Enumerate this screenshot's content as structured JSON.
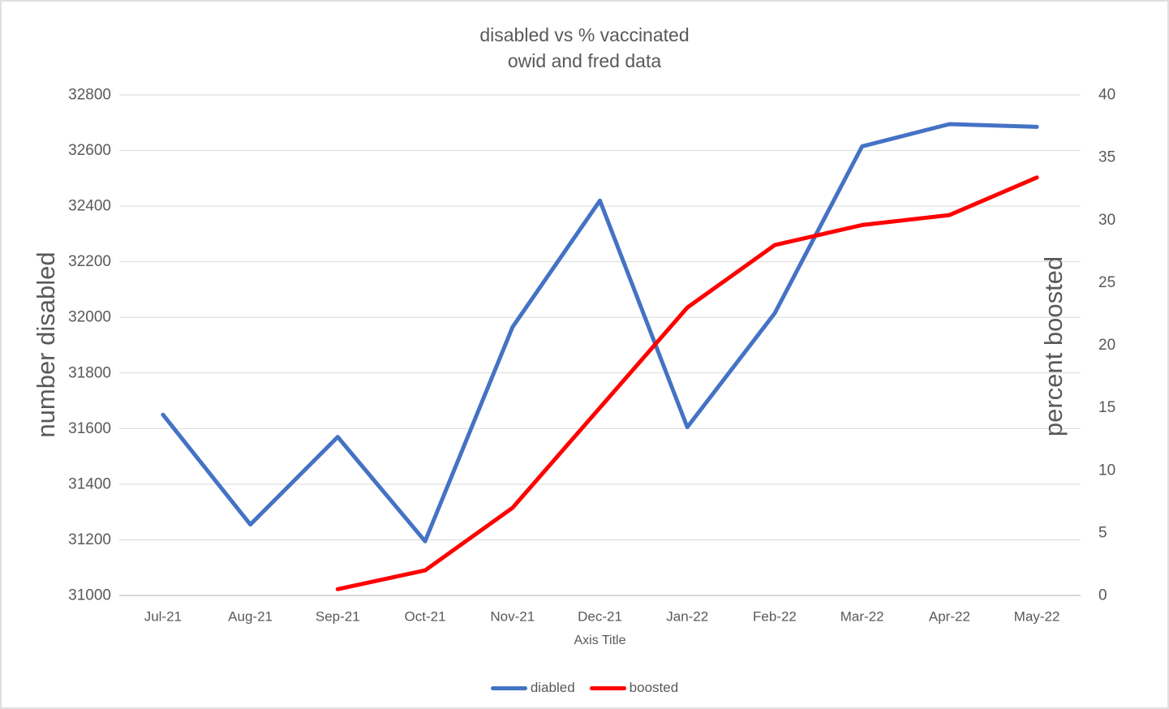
{
  "title": {
    "line1": "disabled vs % vaccinated",
    "line2": "owid and fred data"
  },
  "chart_data": {
    "type": "line",
    "categories": [
      "Jul-21",
      "Aug-21",
      "Sep-21",
      "Oct-21",
      "Nov-21",
      "Dec-21",
      "Jan-22",
      "Feb-22",
      "Mar-22",
      "Apr-22",
      "May-22"
    ],
    "series": [
      {
        "name": "diabled",
        "axis": "left",
        "color": "#4472C4",
        "values": [
          31650,
          31255,
          31570,
          31195,
          31965,
          32420,
          31605,
          32015,
          32615,
          32695,
          32685
        ]
      },
      {
        "name": "boosted",
        "axis": "right",
        "color": "#FF0000",
        "values": [
          null,
          null,
          0.5,
          2,
          7,
          15,
          23,
          28,
          29.6,
          30.4,
          33.4
        ]
      }
    ],
    "title": "disabled vs % vaccinated owid and fred data",
    "x_axis_title": "Axis Title",
    "y_left": {
      "title": "number disabled",
      "min": 31000,
      "max": 32800,
      "step": 200
    },
    "y_right": {
      "title": "percent boosted",
      "min": 0,
      "max": 40,
      "step": 5
    },
    "grid": true,
    "legend_position": "bottom"
  },
  "legend": {
    "items": [
      {
        "label": "diabled",
        "color": "#4472C4"
      },
      {
        "label": "boosted",
        "color": "#FF0000"
      }
    ]
  },
  "colors": {
    "gridline": "#D9D9D9",
    "axis_line": "#C9C9C9",
    "text": "#595959",
    "series_diabled": "#4472C4",
    "series_boosted": "#FF0000"
  }
}
